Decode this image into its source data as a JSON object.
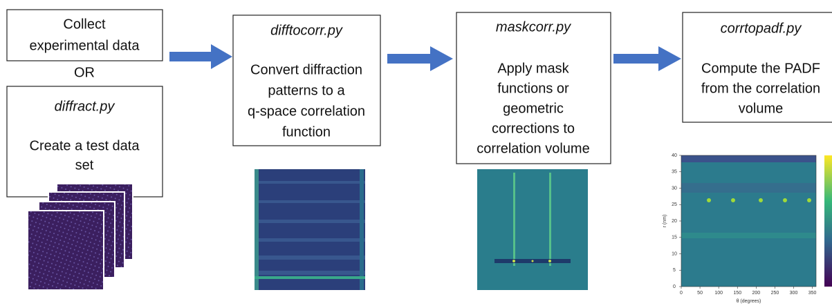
{
  "steps": [
    {
      "lines": [
        "Collect",
        "experimental data"
      ]
    },
    {
      "script": "diffract.py",
      "lines": [
        "Create a test data",
        "set"
      ]
    },
    {
      "script": "difftocorr.py",
      "lines": [
        "Convert diffraction",
        "patterns to a",
        "q-space correlation",
        "function"
      ]
    },
    {
      "script": "maskcorr.py",
      "lines": [
        "Apply mask",
        "functions or",
        "geometric",
        "corrections to",
        "correlation volume"
      ]
    },
    {
      "script": "corrtopadf.py",
      "lines": [
        "Compute the PADF",
        "from the correlation",
        "volume"
      ]
    }
  ],
  "or_label": "OR",
  "padf_plot": {
    "y_label": "r (nm)",
    "x_label": "θ (degrees)",
    "yticks": [
      0,
      5,
      10,
      15,
      20,
      25,
      30,
      35,
      40
    ],
    "xticks": [
      0,
      50,
      100,
      150,
      200,
      250,
      300,
      350
    ]
  }
}
